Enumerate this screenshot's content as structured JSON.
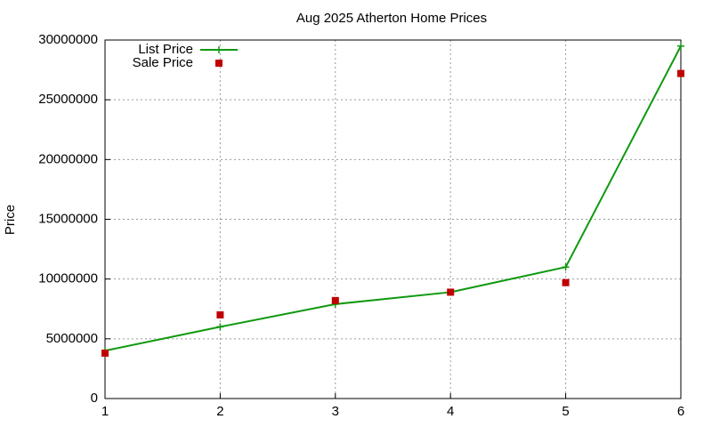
{
  "chart_data": {
    "type": "line",
    "title": "Aug 2025 Atherton Home Prices",
    "y_label": "Price",
    "x": [
      1,
      2,
      3,
      4,
      5,
      6
    ],
    "series": [
      {
        "name": "List Price",
        "color": "#109910",
        "mode": "lines+markers",
        "marker": "plus",
        "values": [
          4000000,
          6000000,
          7900000,
          8900000,
          11000000,
          29500000
        ]
      },
      {
        "name": "Sale Price",
        "color": "#c00000",
        "mode": "markers",
        "marker": "square",
        "values": [
          3800000,
          7000000,
          8200000,
          8900000,
          9700000,
          27200000
        ]
      }
    ],
    "xlim": [
      1,
      6
    ],
    "xticks": [
      1,
      2,
      3,
      4,
      5,
      6
    ],
    "ylim": [
      0,
      30000000
    ],
    "yticks": [
      0,
      5000000,
      10000000,
      15000000,
      20000000,
      25000000,
      30000000
    ],
    "grid": true,
    "legend": "top-left"
  }
}
